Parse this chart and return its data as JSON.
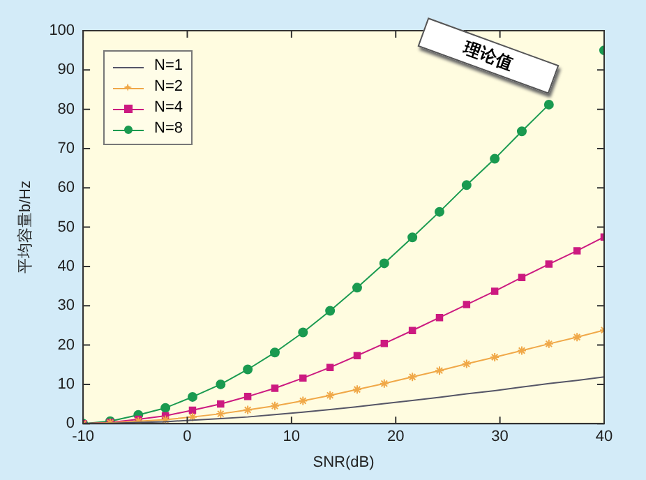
{
  "chart_data": {
    "type": "line",
    "xlabel": "SNR(dB)",
    "ylabel": "平均容量b/Hz",
    "annotations": [
      "理论值"
    ],
    "x": [
      -10,
      -7.4,
      -4.7,
      -2.1,
      0.5,
      3.2,
      5.8,
      8.4,
      11.1,
      13.7,
      16.3,
      18.9,
      21.6,
      24.2,
      26.8,
      29.5,
      32.1,
      34.7,
      37.4,
      40
    ],
    "series": [
      {
        "name": "N=1",
        "color": "#555566",
        "marker": "none",
        "values": [
          0,
          0.1,
          0.3,
          0.5,
          0.9,
          1.3,
          1.7,
          2.3,
          2.9,
          3.6,
          4.3,
          5.1,
          5.9,
          6.7,
          7.6,
          8.4,
          9.3,
          10.2,
          11.0,
          11.9
        ]
      },
      {
        "name": "N=2",
        "color": "#f0a848",
        "marker": "cross",
        "values": [
          0,
          0.2,
          0.6,
          1.0,
          1.7,
          2.5,
          3.5,
          4.5,
          5.8,
          7.2,
          8.7,
          10.2,
          11.9,
          13.5,
          15.2,
          16.9,
          18.6,
          20.3,
          22.0,
          23.8
        ]
      },
      {
        "name": "N=4",
        "color": "#cc1a80",
        "marker": "square",
        "values": [
          0,
          0.3,
          1.1,
          2.0,
          3.4,
          5.0,
          6.9,
          9.0,
          11.6,
          14.3,
          17.3,
          20.4,
          23.7,
          27.0,
          30.3,
          33.7,
          37.2,
          40.6,
          44.0,
          47.5
        ]
      },
      {
        "name": "N=8",
        "color": "#1a9a50",
        "marker": "circle",
        "values": [
          0,
          0.6,
          2.2,
          4.0,
          6.8,
          10.0,
          13.8,
          18.1,
          23.2,
          28.7,
          34.6,
          40.8,
          47.4,
          53.9,
          60.7,
          67.4,
          74.4,
          81.2,
          null,
          95.0
        ]
      }
    ],
    "xlim": [
      -10,
      40
    ],
    "xticks": [
      -10,
      0,
      10,
      20,
      30,
      40
    ],
    "ylim": [
      0,
      100
    ],
    "yticks": [
      0,
      10,
      20,
      30,
      40,
      50,
      60,
      70,
      80,
      90,
      100
    ],
    "grid": false,
    "legend": "top left"
  }
}
